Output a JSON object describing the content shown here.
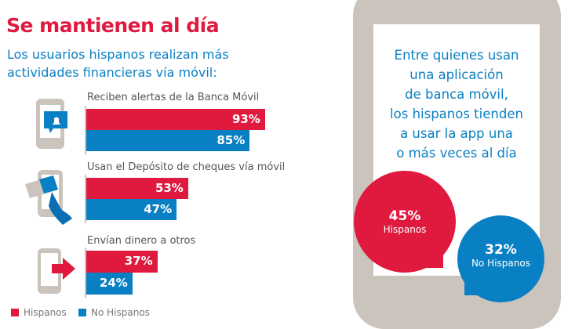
{
  "header": {
    "title": "Se mantienen al día",
    "subtitle": "Los usuarios hispanos realizan más actividades financieras vía móvil:"
  },
  "chart_data": {
    "type": "bar",
    "orientation": "horizontal",
    "categories": [
      "Reciben alertas de la Banca Móvil",
      "Usan el Depósito de cheques vía móvil",
      "Envían dinero a otros"
    ],
    "series": [
      {
        "name": "Hispanos",
        "values": [
          93,
          53,
          37
        ],
        "color": "#e0193f"
      },
      {
        "name": "No Hispanos",
        "values": [
          85,
          47,
          24
        ],
        "color": "#0a80c4"
      }
    ],
    "xlim": [
      0,
      100
    ],
    "legend_placement": "bottom-left",
    "grid": false
  },
  "bars": {
    "series": [
      {
        "name": "Hispanos",
        "color": "#e0193f",
        "values": [
          93,
          53,
          37
        ],
        "labels": [
          "93%",
          "53%",
          "37%"
        ]
      },
      {
        "name": "No Hispanos",
        "color": "#0a80c4",
        "values": [
          85,
          47,
          24
        ],
        "labels": [
          "85%",
          "47%",
          "24%"
        ]
      }
    ],
    "icons": [
      "phone-bell-alert-icon",
      "phone-check-deposit-icon",
      "phone-send-money-icon"
    ]
  },
  "callout": {
    "message_lines": [
      "Entre quienes usan",
      "una aplicación",
      "de banca móvil,",
      "los hispanos tienden",
      "a usar la app una",
      "o más veces al día"
    ],
    "hispanos": {
      "value": "45%",
      "label": "Hispanos",
      "color": "#e0193f"
    },
    "no_hispanos": {
      "value": "32%",
      "label": "No Hispanos",
      "color": "#0a80c4"
    }
  }
}
